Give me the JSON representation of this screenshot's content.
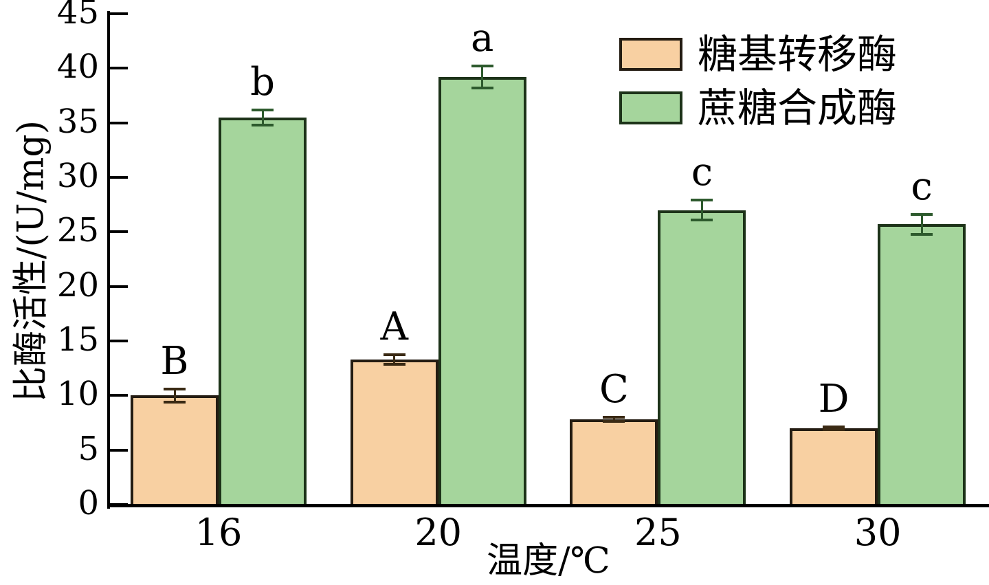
{
  "chart_data": {
    "type": "bar",
    "title": "",
    "xlabel": "温度/℃",
    "ylabel": "比酶活性/(U/mg)",
    "categories": [
      "16",
      "20",
      "25",
      "30"
    ],
    "ylim": [
      0,
      45
    ],
    "yticks": [
      0,
      5,
      10,
      15,
      20,
      25,
      30,
      35,
      40,
      45
    ],
    "grid": false,
    "legend_position": "top-right",
    "axis_color": "#000000",
    "background_color": "#ffffff",
    "series": [
      {
        "name": "糖基转移酶",
        "fill_color": "#F8D0A2",
        "edge_color": "#241c12",
        "error_color": "#3a2a14",
        "values": [
          10.0,
          13.3,
          7.8,
          7.0
        ],
        "errors": [
          0.6,
          0.45,
          0.2,
          0.15
        ],
        "sig_letters": [
          "B",
          "A",
          "C",
          "D"
        ]
      },
      {
        "name": "蔗糖合成酶",
        "fill_color": "#A5D59C",
        "edge_color": "#1d3319",
        "error_color": "#2d5a2d",
        "values": [
          35.5,
          39.2,
          27.0,
          25.7
        ],
        "errors": [
          0.7,
          1.0,
          0.9,
          0.9
        ],
        "sig_letters": [
          "b",
          "a",
          "c",
          "c"
        ]
      }
    ]
  }
}
